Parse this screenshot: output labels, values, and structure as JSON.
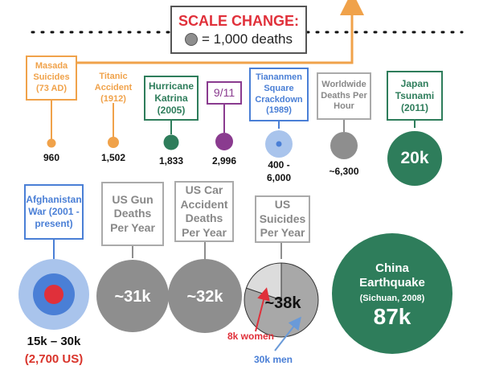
{
  "header": {
    "title": "SCALE CHANGE:",
    "legend_text": "= 1,000 deaths"
  },
  "colors": {
    "orange": "#f0a24a",
    "green": "#2e7d5b",
    "purple": "#8a3b8f",
    "blue": "#4a7fd6",
    "gray": "#8e8e8e",
    "red": "#e0303a",
    "red_value": "#d9342b",
    "light_blue_arrow": "#6a9ad8"
  },
  "events": [
    {
      "label": "Masada Suicides (73 AD)",
      "value": "960"
    },
    {
      "label": "Titanic Accident (1912)",
      "value": "1,502"
    },
    {
      "label": "Hurricane Katrina (2005)",
      "value": "1,833"
    },
    {
      "label": "9/11",
      "value": "2,996"
    },
    {
      "label": "Tiananmen Square Crackdown (1989)",
      "value": "400 - 6,000"
    },
    {
      "label": "Worldwide Deaths Per Hour",
      "value": "~6,300"
    },
    {
      "label": "Japan Tsunami (2011)",
      "value": "20k"
    },
    {
      "label": "Afghanistan War (2001 - present)",
      "value": "15k – 30k",
      "sub_value": "(2,700 US)"
    },
    {
      "label": "US Gun Deaths Per Year",
      "value": "~31k"
    },
    {
      "label": "US Car Accident Deaths Per Year",
      "value": "~32k"
    },
    {
      "label": "US Suicides Per Year",
      "value": "~38k",
      "women": "8k women",
      "men": "30k men"
    },
    {
      "label": "China Earthquake",
      "sub_label": "(Sichuan, 2008)",
      "value": "87k"
    }
  ]
}
